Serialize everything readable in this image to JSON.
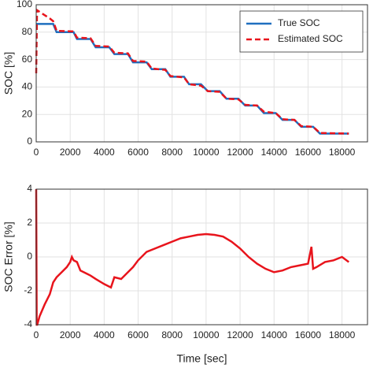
{
  "chart_data": [
    {
      "type": "line",
      "ylabel": "SOC [%]",
      "xlim": [
        0,
        19500
      ],
      "ylim": [
        0,
        100
      ],
      "xticks": [
        0,
        2000,
        4000,
        6000,
        8000,
        10000,
        12000,
        14000,
        16000,
        18000
      ],
      "yticks": [
        0,
        20,
        40,
        60,
        80,
        100
      ],
      "grid": true,
      "legend": "upper right",
      "x": [
        0,
        50,
        300,
        800,
        1000,
        1200,
        2200,
        2400,
        3200,
        3500,
        4300,
        4600,
        5400,
        5700,
        6500,
        6800,
        7600,
        7900,
        8700,
        9000,
        9700,
        10100,
        10800,
        11200,
        11900,
        12300,
        13000,
        13400,
        14100,
        14500,
        15200,
        15600,
        16300,
        16700,
        18400
      ],
      "series": [
        {
          "name": "True SOC",
          "color": "#1f6fbf",
          "linestyle": "solid",
          "values": [
            86,
            86,
            86,
            86,
            86,
            80,
            80,
            75,
            75,
            69,
            69,
            64,
            64,
            58,
            58,
            53,
            53,
            47.5,
            47.5,
            42,
            42,
            37,
            37,
            31.5,
            31.5,
            26.5,
            26.5,
            21,
            21,
            16,
            16,
            11,
            11,
            6,
            6
          ]
        },
        {
          "name": "Estimated SOC",
          "color": "#e8141c",
          "linestyle": "dashed",
          "values": [
            50,
            96,
            94,
            90,
            88,
            81,
            80.5,
            76,
            75.5,
            70,
            69.5,
            65,
            64.5,
            59,
            58.5,
            53.5,
            52.5,
            48,
            47,
            42,
            41,
            37,
            36.5,
            31.5,
            31,
            27,
            26.5,
            22,
            21,
            16.5,
            16,
            11.5,
            11,
            6.5,
            6
          ]
        }
      ]
    },
    {
      "type": "line",
      "ylabel": "SOC Error [%]",
      "xlabel": "Time [sec]",
      "xlim": [
        0,
        19500
      ],
      "ylim": [
        -4,
        4
      ],
      "xticks": [
        0,
        2000,
        4000,
        6000,
        8000,
        10000,
        12000,
        14000,
        16000,
        18000
      ],
      "yticks": [
        -4,
        -2,
        0,
        2,
        4
      ],
      "grid": true,
      "x": [
        0,
        30,
        60,
        200,
        500,
        800,
        1000,
        1200,
        1500,
        1800,
        2000,
        2100,
        2200,
        2400,
        2600,
        3000,
        3200,
        3500,
        4000,
        4400,
        4600,
        5000,
        5400,
        5700,
        6000,
        6500,
        7000,
        7500,
        8000,
        8500,
        9000,
        9500,
        10000,
        10500,
        11000,
        11500,
        12000,
        12500,
        13000,
        13500,
        14000,
        14500,
        15000,
        15500,
        16000,
        16200,
        16300,
        16500,
        17000,
        17500,
        18000,
        18400
      ],
      "series": [
        {
          "color": "#e8141c",
          "linestyle": "solid",
          "values": [
            4,
            -4,
            -4,
            -3.5,
            -2.8,
            -2.2,
            -1.5,
            -1.2,
            -0.9,
            -0.6,
            -0.3,
            0,
            -0.2,
            -0.3,
            -0.8,
            -1,
            -1.1,
            -1.3,
            -1.6,
            -1.8,
            -1.2,
            -1.3,
            -0.9,
            -0.6,
            -0.2,
            0.3,
            0.5,
            0.7,
            0.9,
            1.1,
            1.2,
            1.3,
            1.35,
            1.3,
            1.2,
            0.9,
            0.5,
            0,
            -0.4,
            -0.7,
            -0.9,
            -0.8,
            -0.6,
            -0.5,
            -0.4,
            0.6,
            -0.7,
            -0.6,
            -0.3,
            -0.2,
            0,
            -0.3
          ]
        }
      ]
    }
  ]
}
